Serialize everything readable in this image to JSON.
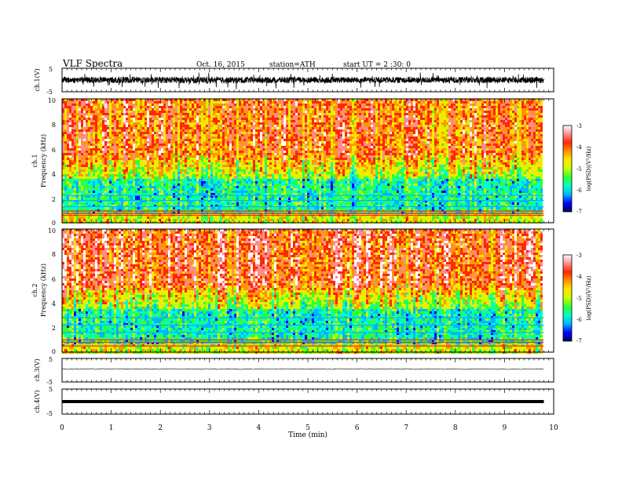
{
  "header": {
    "title": "VLF  Spectra",
    "date": "Oct. 16, 2015",
    "station": "station=ATH",
    "start": "start  UT  =   2  :30: 0"
  },
  "colors": {
    "colormap": [
      "#00005a",
      "#0000ff",
      "#00b4ff",
      "#00ffc8",
      "#32ff32",
      "#c8ff00",
      "#ffe600",
      "#ff9600",
      "#ff2800",
      "#ff8c8c",
      "#ffffff"
    ],
    "waveform": "#000000"
  },
  "chart_data": [
    {
      "name": "ch1-waveform",
      "type": "line",
      "ylabel": "ch.1(V)",
      "ylim": [
        -5,
        5
      ],
      "yticks": [
        "5",
        "-5"
      ],
      "xlim": [
        0,
        10
      ],
      "trace_style": "dense noisy waveform centered near 0 V"
    },
    {
      "name": "ch1-spectrogram",
      "type": "heatmap",
      "ylabel_line1": "ch.1",
      "ylabel_line2": "Frequency  (kHz)",
      "ylim": [
        0,
        10
      ],
      "yticks": [
        "0",
        "2",
        "4",
        "6",
        "8",
        "10"
      ],
      "xlim": [
        0,
        10
      ],
      "data_end_min": 9.8,
      "colorbar": {
        "label": "log(PSD)(V²/Hz)",
        "range": [
          -7,
          -3
        ],
        "ticks": [
          "-3",
          "-4",
          "-5",
          "-6",
          "-7"
        ]
      }
    },
    {
      "name": "ch2-spectrogram",
      "type": "heatmap",
      "ylabel_line1": "ch.2",
      "ylabel_line2": "Frequency  (kHz)",
      "ylim": [
        0,
        10
      ],
      "yticks": [
        "0",
        "2",
        "4",
        "6",
        "8",
        "10"
      ],
      "xlim": [
        0,
        10
      ],
      "data_end_min": 9.8,
      "colorbar": {
        "label": "log(PSD)(V²/Hz)",
        "range": [
          -7,
          -3
        ],
        "ticks": [
          "-3",
          "-4",
          "-5",
          "-6",
          "-7"
        ]
      }
    },
    {
      "name": "ch3-waveform",
      "type": "line",
      "ylabel": "ch.3(V)",
      "ylim": [
        -5,
        5
      ],
      "yticks": [
        "5",
        "-5"
      ],
      "xlim": [
        0,
        10
      ],
      "level_v": 0.5
    },
    {
      "name": "ch4-waveform",
      "type": "line",
      "ylabel": "ch.4(V)",
      "ylim": [
        -5,
        5
      ],
      "yticks": [
        "5",
        "-5"
      ],
      "xlim": [
        0,
        10
      ],
      "level_v": 0
    }
  ],
  "xaxis": {
    "label": "Time  (min)",
    "ticks": [
      "0",
      "1",
      "2",
      "3",
      "4",
      "5",
      "6",
      "7",
      "8",
      "9",
      "10"
    ],
    "range": [
      0,
      10
    ]
  }
}
